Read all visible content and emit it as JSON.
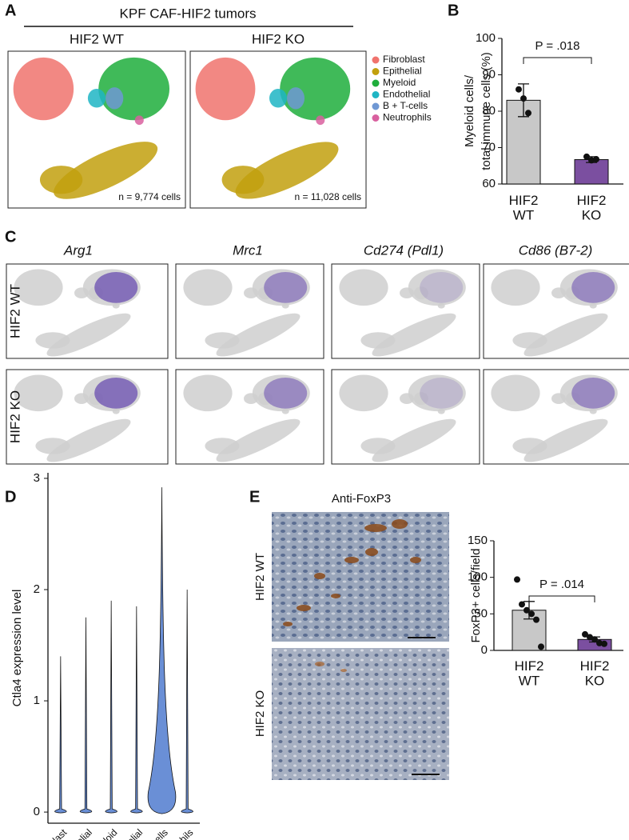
{
  "figure": {
    "panel_labels": [
      "A",
      "B",
      "C",
      "D",
      "E"
    ],
    "panel_a": {
      "title": "KPF CAF-HIF2 tumors",
      "groups": [
        "HIF2 WT",
        "HIF2 KO"
      ],
      "counts": [
        "n = 9,774 cells",
        "n = 11,028 cells"
      ],
      "legend": [
        {
          "name": "Fibroblast",
          "color": "#f0736d"
        },
        {
          "name": "Epithelial",
          "color": "#c2a00e"
        },
        {
          "name": "Myeloid",
          "color": "#1fae3c"
        },
        {
          "name": "Endothelial",
          "color": "#1fb5c4"
        },
        {
          "name": "B + T-cells",
          "color": "#6f98d4"
        },
        {
          "name": "Neutrophils",
          "color": "#d9609f"
        }
      ]
    },
    "panel_c": {
      "genes": [
        "Arg1",
        "Mrc1",
        "Cd274 (Pdl1)",
        "Cd86 (B7-2)"
      ],
      "rows": [
        "HIF2 WT",
        "HIF2 KO"
      ]
    },
    "panel_e": {
      "title": "Anti-FoxP3",
      "rows": [
        "HIF2 WT",
        "HIF2 KO"
      ]
    }
  },
  "chart_data": [
    {
      "type": "bar",
      "ylabel": [
        "Myeloid cells/",
        "total immune cells (%)"
      ],
      "categories": [
        "HIF2 WT",
        "HIF2 KO"
      ],
      "values": [
        83,
        66.7
      ],
      "errors": [
        4.5,
        0.8
      ],
      "points": [
        [
          86,
          83.5,
          79.5
        ],
        [
          67.5,
          66.5,
          66.8
        ]
      ],
      "colors": [
        "#c8c8c8",
        "#7b4fa0"
      ],
      "ylim": [
        60,
        100
      ],
      "yticks": [
        60,
        70,
        80,
        90,
        100
      ],
      "annotation": "P = .018"
    },
    {
      "type": "violin",
      "ylabel": "Ctla4 expression level",
      "categories": [
        "Fibroblast",
        "Epithelial",
        "Myeloid",
        "Endothelial",
        "B + T cells",
        "Neutrophils"
      ],
      "values": [
        1.4,
        1.75,
        1.9,
        1.85,
        2.92,
        2.0
      ],
      "color": "#6a8fd6",
      "ylim": [
        -0.1,
        3.05
      ],
      "yticks": [
        0,
        1,
        2,
        3
      ]
    },
    {
      "type": "bar",
      "ylabel": [
        "FoxP3+ cells/field"
      ],
      "categories": [
        "HIF2 WT",
        "HIF2 KO"
      ],
      "values": [
        55,
        15
      ],
      "errors": [
        12,
        3.5
      ],
      "points": [
        [
          97,
          63,
          55,
          50,
          42,
          5
        ],
        [
          22,
          18,
          15,
          10,
          9
        ]
      ],
      "colors": [
        "#c8c8c8",
        "#7b4fa0"
      ],
      "ylim": [
        0,
        150
      ],
      "yticks": [
        0,
        50,
        100,
        150
      ],
      "annotation": "P = .014"
    }
  ]
}
